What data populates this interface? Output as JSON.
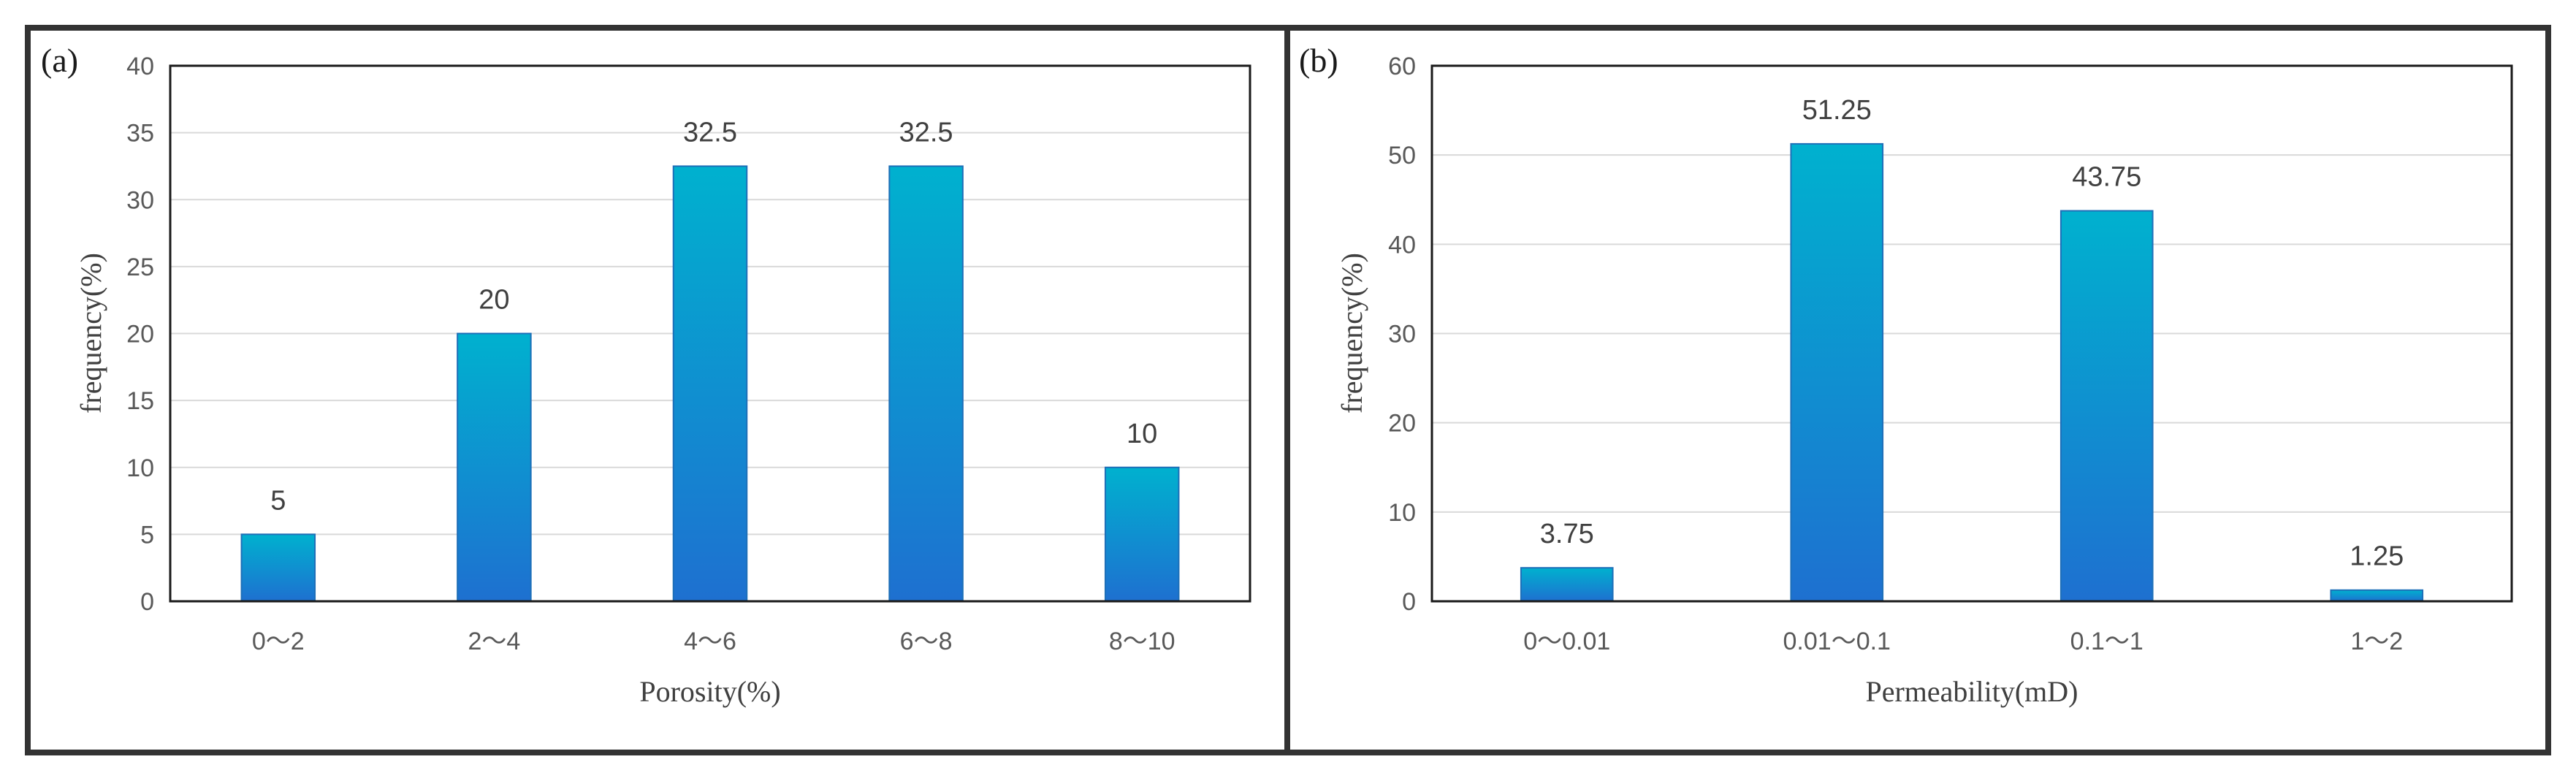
{
  "chart_data": [
    {
      "panel_label": "(a)",
      "type": "bar",
      "categories": [
        "0～2",
        "2～4",
        "4～6",
        "6～8",
        "8～10"
      ],
      "values": [
        5,
        20,
        32.5,
        32.5,
        10
      ],
      "data_labels": [
        "5",
        "20",
        "32.5",
        "32.5",
        "10"
      ],
      "xlabel": "Porosity(%)",
      "ylabel": "frequency(%)",
      "ylim": [
        0,
        40
      ],
      "yticks": [
        0,
        5,
        10,
        15,
        20,
        25,
        30,
        35,
        40
      ],
      "grid": "horizontal",
      "colors": {
        "bar_top": "#00B1CF",
        "bar_bottom": "#1E70D0",
        "grid": "#D9D9D9",
        "frame": "#1a1a1a"
      }
    },
    {
      "panel_label": "(b)",
      "type": "bar",
      "categories": [
        "0～0.01",
        "0.01～0.1",
        "0.1～1",
        "1～2"
      ],
      "values": [
        3.75,
        51.25,
        43.75,
        1.25
      ],
      "data_labels": [
        "3.75",
        "51.25",
        "43.75",
        "1.25"
      ],
      "xlabel": "Permeability(mD)",
      "ylabel": "frequency(%)",
      "ylim": [
        0,
        60
      ],
      "yticks": [
        0,
        10,
        20,
        30,
        40,
        50,
        60
      ],
      "grid": "horizontal",
      "colors": {
        "bar_top": "#00B1CF",
        "bar_bottom": "#1E70D0",
        "grid": "#D9D9D9",
        "frame": "#1a1a1a"
      }
    }
  ]
}
